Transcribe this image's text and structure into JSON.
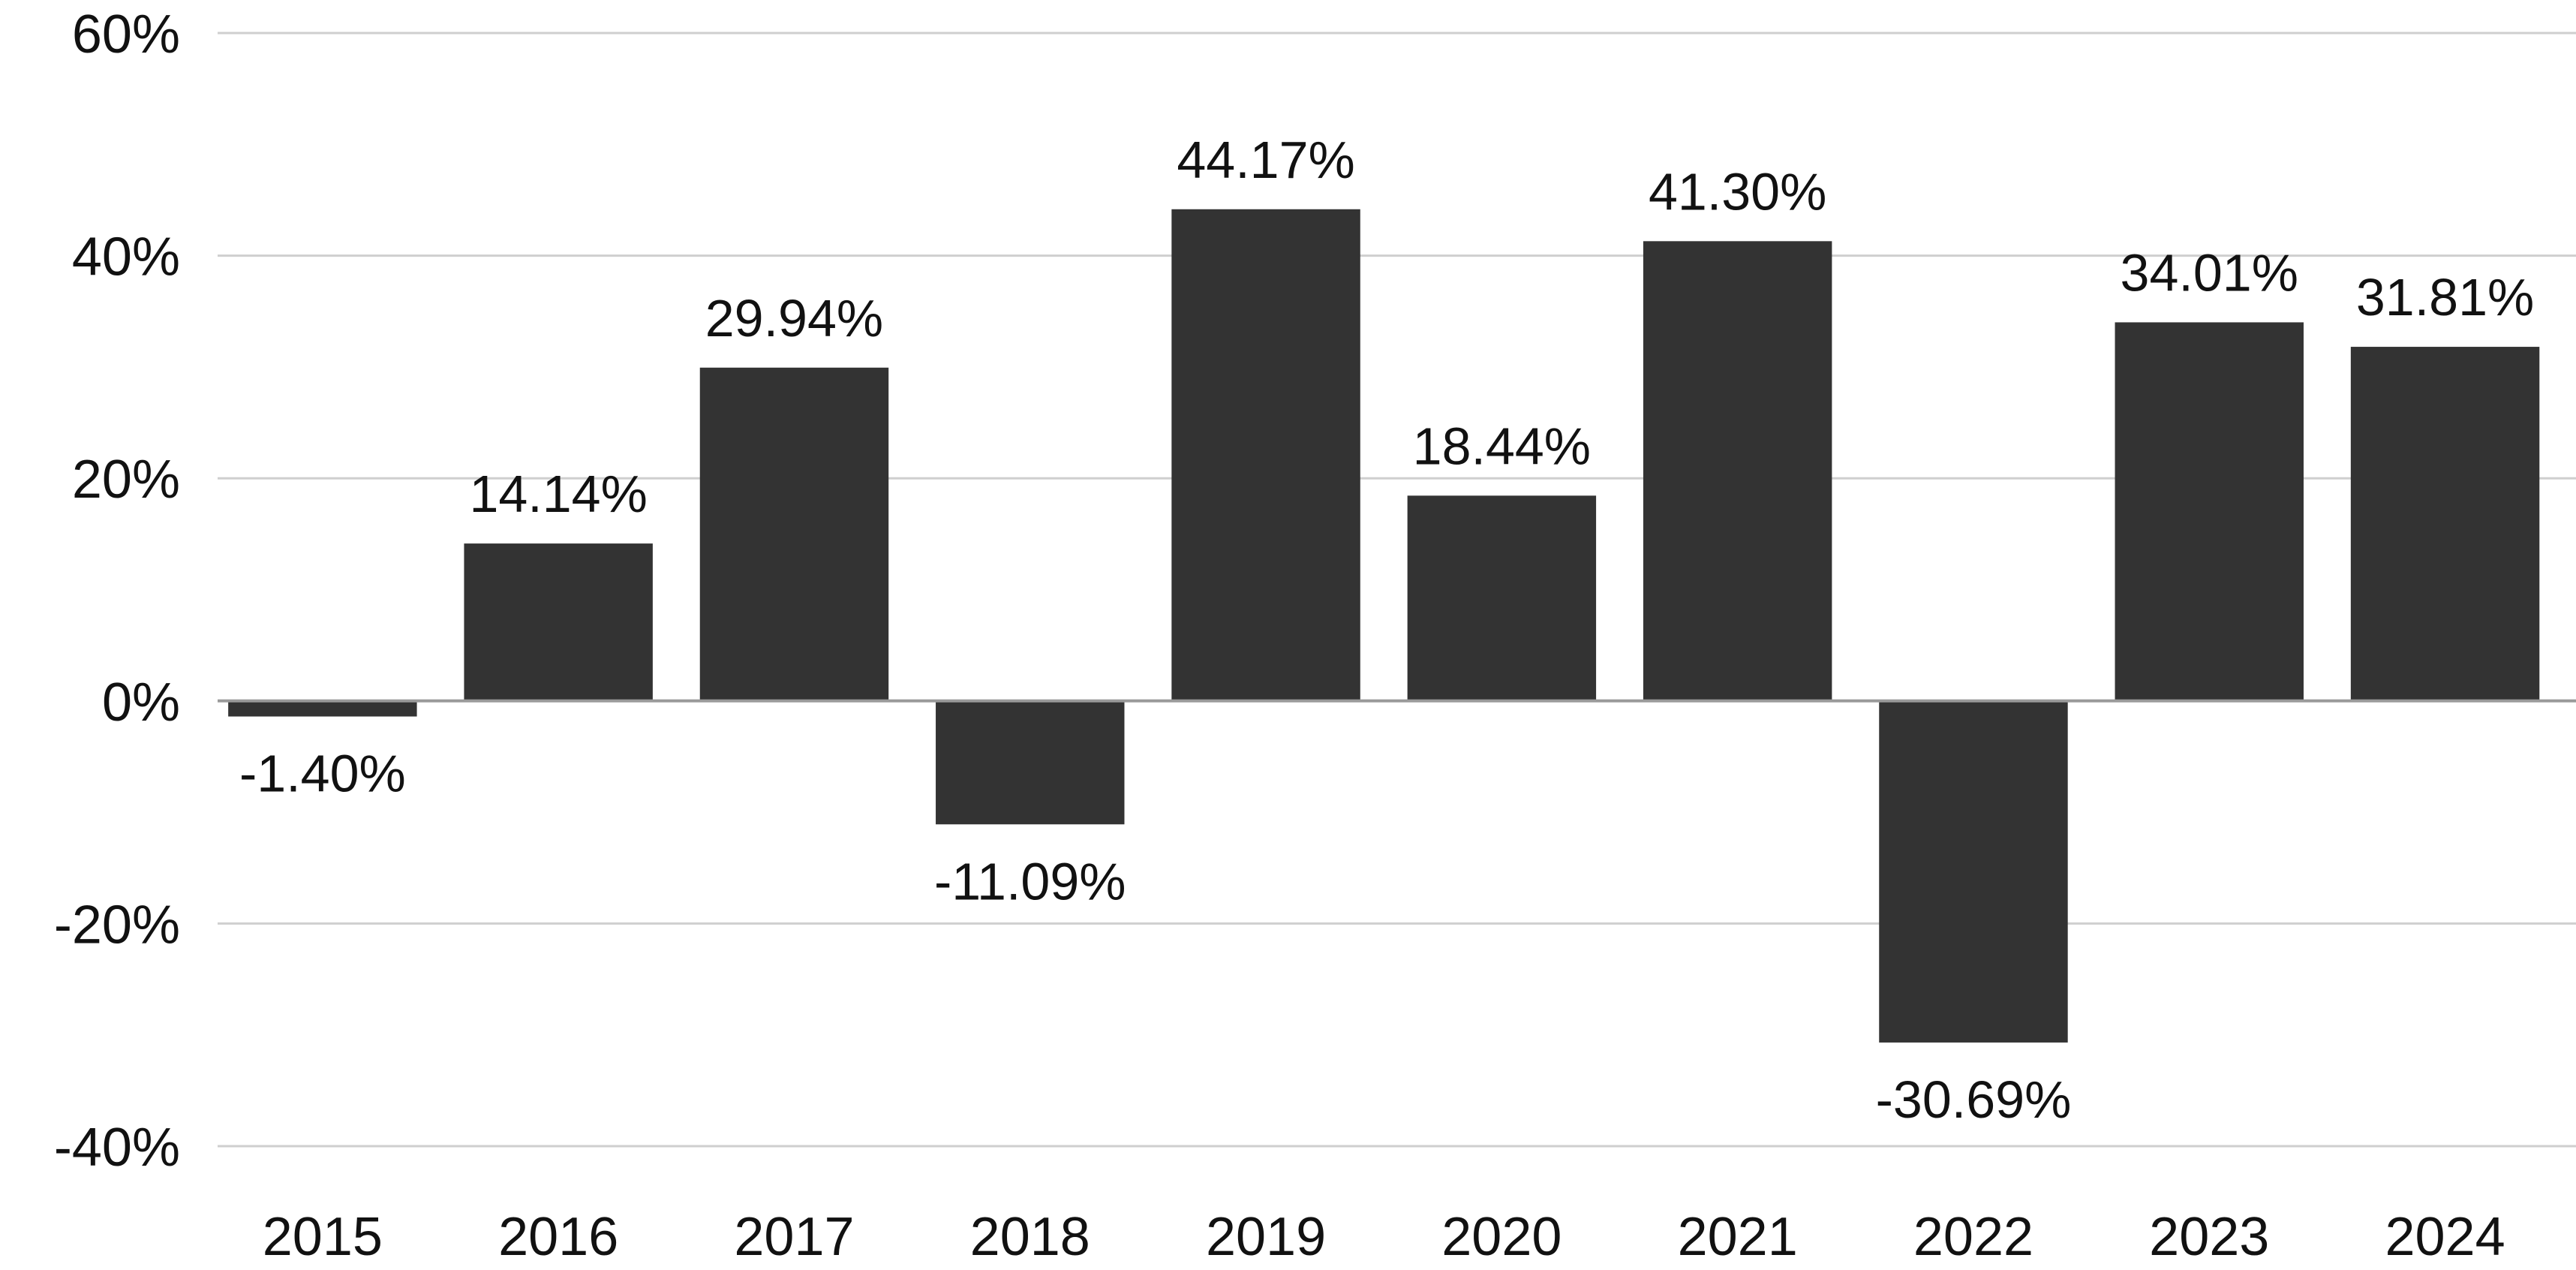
{
  "chart_data": {
    "type": "bar",
    "categories": [
      "2015",
      "2016",
      "2017",
      "2018",
      "2019",
      "2020",
      "2021",
      "2022",
      "2023",
      "2024"
    ],
    "values": [
      -1.4,
      14.14,
      29.94,
      -11.09,
      44.17,
      18.44,
      41.3,
      -30.69,
      34.01,
      31.81
    ],
    "data_labels": [
      "-1.40%",
      "14.14%",
      "29.94%",
      "-11.09%",
      "44.17%",
      "18.44%",
      "41.30%",
      "-30.69%",
      "34.01%",
      "31.81%"
    ],
    "title": "",
    "xlabel": "",
    "ylabel": "",
    "ylim": [
      -40,
      60
    ],
    "yticks": [
      60,
      40,
      20,
      0,
      -20,
      -40
    ],
    "ytick_labels": [
      "60%",
      "40%",
      "20%",
      "0%",
      "-20%",
      "-40%"
    ],
    "grid": true,
    "legend": "none",
    "bar_color": "#333333",
    "grid_color": "#cfcfcf"
  }
}
